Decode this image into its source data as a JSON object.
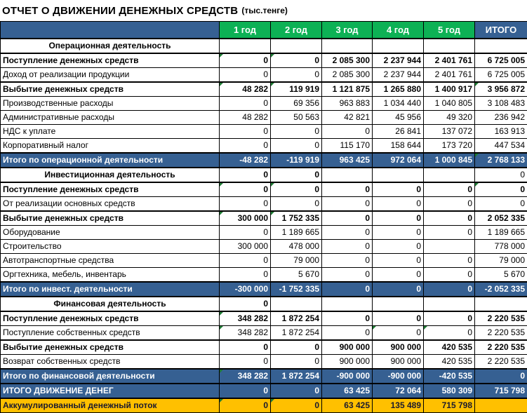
{
  "title": "ОТЧЕТ О ДВИЖЕНИИ ДЕНЕЖНЫХ СРЕДСТВ",
  "title_suffix": "(тыс.тенге)",
  "columns": [
    "1 год",
    "2 год",
    "3 год",
    "4 год",
    "5 год",
    "ИТОГО"
  ],
  "colors": {
    "header_green": "#0DB155",
    "header_blue": "#366092",
    "total_row_blue": "#366092",
    "accum_row_yellow": "#FFC000",
    "error_triangle_green": "#1E7B34",
    "grid_black": "#000000"
  },
  "rows": [
    {
      "type": "section",
      "label": "Операционная деятельность",
      "values": [
        "",
        "",
        "",
        "",
        "",
        ""
      ],
      "tri": []
    },
    {
      "type": "bold",
      "label": "Поступление денежных средств",
      "values": [
        "0",
        "0",
        "2 085 300",
        "2 237 944",
        "2 401 761",
        "6 725 005"
      ],
      "tri": [
        0,
        1
      ]
    },
    {
      "type": "normal",
      "label": "Доход от реализации продукции",
      "values": [
        "0",
        "0",
        "2 085 300",
        "2 237 944",
        "2 401 761",
        "6 725 005"
      ],
      "tri": []
    },
    {
      "type": "bold",
      "label": "Выбытие денежных средств",
      "values": [
        "48 282",
        "119 919",
        "1 121 875",
        "1 265 880",
        "1 400 917",
        "3 956 872"
      ],
      "tri": [
        0,
        1,
        5
      ]
    },
    {
      "type": "normal",
      "label": "Производственные расходы",
      "values": [
        "0",
        "69 356",
        "963 883",
        "1 034 440",
        "1 040 805",
        "3 108 483"
      ],
      "tri": []
    },
    {
      "type": "normal",
      "label": "Административные расходы",
      "values": [
        "48 282",
        "50 563",
        "42 821",
        "45 956",
        "49 320",
        "236 942"
      ],
      "tri": []
    },
    {
      "type": "normal",
      "label": "НДС к уплате",
      "values": [
        "0",
        "0",
        "0",
        "26 841",
        "137 072",
        "163 913"
      ],
      "tri": []
    },
    {
      "type": "normal",
      "label": "Корпоративный налог",
      "values": [
        "0",
        "0",
        "115 170",
        "158 644",
        "173 720",
        "447 534"
      ],
      "tri": []
    },
    {
      "type": "total",
      "label": "Итого по операционной деятельности",
      "values": [
        "-48 282",
        "-119 919",
        "963 425",
        "972 064",
        "1 000 845",
        "2 768 133"
      ],
      "tri": [
        5
      ]
    },
    {
      "type": "section",
      "label": "Инвестиционная деятельность",
      "values": [
        "0",
        "0",
        "",
        "",
        "",
        "0"
      ],
      "tri": []
    },
    {
      "type": "bold",
      "label": "Поступление денежных средств",
      "values": [
        "0",
        "0",
        "0",
        "0",
        "0",
        "0"
      ],
      "tri": [
        0,
        1,
        5
      ]
    },
    {
      "type": "normal",
      "label": "От реализации основных средств",
      "values": [
        "0",
        "0",
        "0",
        "0",
        "0",
        "0"
      ],
      "tri": []
    },
    {
      "type": "bold",
      "label": "Выбытие денежных средств",
      "values": [
        "300 000",
        "1 752 335",
        "0",
        "0",
        "0",
        "2 052 335"
      ],
      "tri": [
        0,
        1
      ]
    },
    {
      "type": "normal",
      "label": "Оборудование",
      "values": [
        "0",
        "1 189 665",
        "0",
        "0",
        "0",
        "1 189 665"
      ],
      "tri": []
    },
    {
      "type": "normal",
      "label": "Строительство",
      "values": [
        "300 000",
        "478 000",
        "0",
        "0",
        "",
        "778 000"
      ],
      "tri": []
    },
    {
      "type": "normal",
      "label": "Автотранспортные средства",
      "values": [
        "0",
        "79 000",
        "0",
        "0",
        "0",
        "79 000"
      ],
      "tri": []
    },
    {
      "type": "normal",
      "label": "Оргтехника, мебель, инвентарь",
      "values": [
        "0",
        "5 670",
        "0",
        "0",
        "0",
        "5 670"
      ],
      "tri": []
    },
    {
      "type": "total",
      "label": "Итого по инвест. деятельности",
      "values": [
        "-300 000",
        "-1 752 335",
        "0",
        "0",
        "0",
        "-2 052 335"
      ],
      "tri": []
    },
    {
      "type": "section",
      "label": "Финансовая деятельность",
      "values": [
        "0",
        "",
        "",
        "",
        "",
        ""
      ],
      "tri": []
    },
    {
      "type": "bold",
      "label": "Поступление денежных средств",
      "values": [
        "348 282",
        "1 872 254",
        "0",
        "0",
        "0",
        "2 220 535"
      ],
      "tri": [
        0
      ]
    },
    {
      "type": "normal",
      "label": "Поступление собственных средств",
      "values": [
        "348 282",
        "1 872 254",
        "0",
        "0",
        "0",
        "2 220 535"
      ],
      "tri": [
        0,
        3,
        4
      ]
    },
    {
      "type": "bold",
      "label": "Выбытие денежных средств",
      "values": [
        "0",
        "0",
        "900 000",
        "900 000",
        "420 535",
        "2 220 535"
      ],
      "tri": []
    },
    {
      "type": "normal",
      "label": "Возврат  собственных средств",
      "values": [
        "0",
        "0",
        "900 000",
        "900 000",
        "420 535",
        "2 220 535"
      ],
      "tri": []
    },
    {
      "type": "total",
      "label": "Итого по финансовой деятельности",
      "values": [
        "348 282",
        "1 872 254",
        "-900 000",
        "-900 000",
        "-420 535",
        "0"
      ],
      "tri": [
        0
      ]
    },
    {
      "type": "grand",
      "label": "ИТОГО ДВИЖЕНИЕ ДЕНЕГ",
      "values": [
        "0",
        "0",
        "63 425",
        "72 064",
        "580 309",
        "715 798"
      ],
      "tri": []
    },
    {
      "type": "accum",
      "label": "Аккумулированный денежный поток",
      "values": [
        "0",
        "0",
        "63 425",
        "135 489",
        "715 798",
        ""
      ],
      "tri": [
        0,
        1
      ]
    }
  ]
}
